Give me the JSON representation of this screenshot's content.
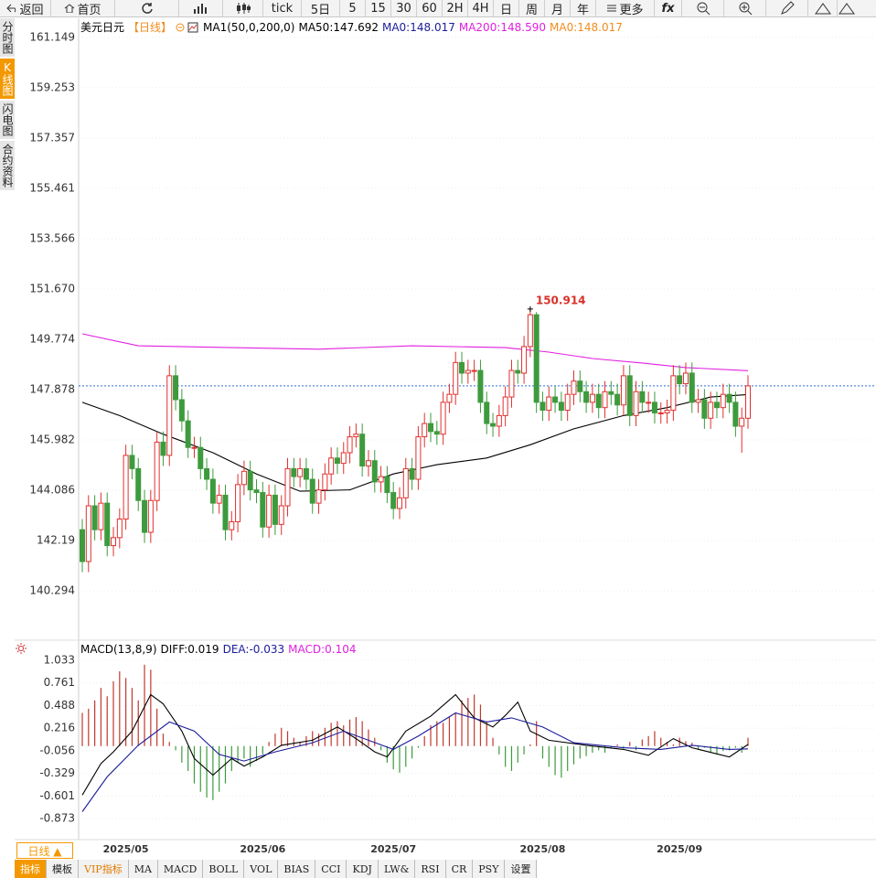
{
  "toolbar": [
    "返回",
    "首页",
    "tick",
    "5日",
    "5",
    "15",
    "30",
    "60",
    "2H",
    "4H",
    "日",
    "周",
    "月",
    "年",
    "更多",
    "fx"
  ],
  "side_tabs": [
    "分时图",
    "K线图",
    "闪电图",
    "合约资料"
  ],
  "period_button": "日线 ▲",
  "bottom_tabs": [
    "指标",
    "模板",
    "VIP指标",
    "MA",
    "MACD",
    "BOLL",
    "VOL",
    "BIAS",
    "CCI",
    "KDJ",
    "LW&",
    "RSI",
    "CR",
    "PSY",
    "设置"
  ],
  "chart_data": [
    {
      "type": "candlestick",
      "title": "美元日元",
      "period": "【日线】",
      "indicator": "MA1(50,0,200,0)",
      "legend": [
        {
          "label": "MA50:147.692",
          "color": "#000000"
        },
        {
          "label": "MA0:148.017",
          "color": "#1c1c9c"
        },
        {
          "label": "MA200:148.590",
          "color": "#e020e0"
        },
        {
          "label": "MA0:148.017",
          "color": "#f08c1e"
        }
      ],
      "categories": [
        null,
        null,
        null,
        null,
        null,
        null,
        null,
        "2025/05",
        null,
        null,
        null,
        null,
        null,
        null,
        null,
        null,
        null,
        null,
        null,
        null,
        null,
        null,
        null,
        null,
        null,
        null,
        null,
        null,
        null,
        "2025/06",
        null,
        null,
        null,
        null,
        null,
        null,
        null,
        null,
        null,
        null,
        null,
        null,
        null,
        null,
        null,
        null,
        null,
        null,
        null,
        null,
        "2025/07",
        null,
        null,
        null,
        null,
        null,
        null,
        null,
        null,
        null,
        null,
        null,
        null,
        null,
        null,
        null,
        null,
        null,
        null,
        null,
        null,
        null,
        null,
        null,
        "2025/08",
        null,
        null,
        null,
        null,
        null,
        null,
        null,
        null,
        null,
        null,
        null,
        null,
        null,
        null,
        null,
        null,
        null,
        null,
        null,
        null,
        null,
        "2025/09",
        null,
        null,
        null,
        null,
        null,
        null,
        null,
        null,
        null,
        null,
        null
      ],
      "candles": [
        [
          142.6,
          143.0,
          141.0,
          141.4
        ],
        [
          141.4,
          143.9,
          141.0,
          143.5
        ],
        [
          143.5,
          143.9,
          142.2,
          142.6
        ],
        [
          142.6,
          144.0,
          142.2,
          143.6
        ],
        [
          143.6,
          144.0,
          141.6,
          142.0
        ],
        [
          142.0,
          142.7,
          141.6,
          142.3
        ],
        [
          142.3,
          143.4,
          141.9,
          143.0
        ],
        [
          143.0,
          145.8,
          142.6,
          145.4
        ],
        [
          145.4,
          145.8,
          144.5,
          144.9
        ],
        [
          144.9,
          145.3,
          143.3,
          143.7
        ],
        [
          143.7,
          144.1,
          142.1,
          142.5
        ],
        [
          142.5,
          144.1,
          142.1,
          143.7
        ],
        [
          143.7,
          146.3,
          143.3,
          145.9
        ],
        [
          145.9,
          146.3,
          145.0,
          145.4
        ],
        [
          145.4,
          148.8,
          145.0,
          148.4
        ],
        [
          148.4,
          148.8,
          147.1,
          147.5
        ],
        [
          147.5,
          147.9,
          146.3,
          146.7
        ],
        [
          146.7,
          147.1,
          145.3,
          145.7
        ],
        [
          145.7,
          146.1,
          145.3,
          145.7
        ],
        [
          145.7,
          146.1,
          144.5,
          144.9
        ],
        [
          144.9,
          145.3,
          144.1,
          144.5
        ],
        [
          144.5,
          144.9,
          143.2,
          143.6
        ],
        [
          143.6,
          144.3,
          143.2,
          143.9
        ],
        [
          143.9,
          144.3,
          142.2,
          142.6
        ],
        [
          142.6,
          143.3,
          142.2,
          142.9
        ],
        [
          142.9,
          144.7,
          142.5,
          144.3
        ],
        [
          144.3,
          145.2,
          143.9,
          144.8
        ],
        [
          144.8,
          145.2,
          143.7,
          144.1
        ],
        [
          144.1,
          144.5,
          143.6,
          144.0
        ],
        [
          144.0,
          144.4,
          142.3,
          142.7
        ],
        [
          142.7,
          144.3,
          142.3,
          143.9
        ],
        [
          143.9,
          144.3,
          142.4,
          142.8
        ],
        [
          142.8,
          143.9,
          142.4,
          143.5
        ],
        [
          143.5,
          145.3,
          143.1,
          144.9
        ],
        [
          144.9,
          145.3,
          144.2,
          144.6
        ],
        [
          144.6,
          145.3,
          144.2,
          144.9
        ],
        [
          144.9,
          145.3,
          144.1,
          144.5
        ],
        [
          144.5,
          144.9,
          143.2,
          143.6
        ],
        [
          143.6,
          144.5,
          143.2,
          144.1
        ],
        [
          144.1,
          145.1,
          143.7,
          144.7
        ],
        [
          144.7,
          145.7,
          144.3,
          145.3
        ],
        [
          145.3,
          145.7,
          144.7,
          145.1
        ],
        [
          145.1,
          145.9,
          144.7,
          145.5
        ],
        [
          145.5,
          146.5,
          145.1,
          146.1
        ],
        [
          146.1,
          146.6,
          145.7,
          146.2
        ],
        [
          146.2,
          146.6,
          144.6,
          145.0
        ],
        [
          145.0,
          145.6,
          144.6,
          145.2
        ],
        [
          145.2,
          145.6,
          144.0,
          144.4
        ],
        [
          144.4,
          145.0,
          144.0,
          144.6
        ],
        [
          144.6,
          145.0,
          143.6,
          144.0
        ],
        [
          144.0,
          144.4,
          143.0,
          143.4
        ],
        [
          143.4,
          144.2,
          143.0,
          143.8
        ],
        [
          143.8,
          145.3,
          143.4,
          144.9
        ],
        [
          144.9,
          145.3,
          144.1,
          144.5
        ],
        [
          144.5,
          146.5,
          144.1,
          146.1
        ],
        [
          146.1,
          147.0,
          145.7,
          146.6
        ],
        [
          146.6,
          147.0,
          145.9,
          146.3
        ],
        [
          146.3,
          146.7,
          145.8,
          146.2
        ],
        [
          146.2,
          147.8,
          145.8,
          147.4
        ],
        [
          147.4,
          148.1,
          147.0,
          147.7
        ],
        [
          147.7,
          149.3,
          147.3,
          148.9
        ],
        [
          148.9,
          149.3,
          148.1,
          148.5
        ],
        [
          148.5,
          149.0,
          148.1,
          148.6
        ],
        [
          148.6,
          149.0,
          148.2,
          148.6
        ],
        [
          148.6,
          149.0,
          147.0,
          147.4
        ],
        [
          147.4,
          147.8,
          146.2,
          146.6
        ],
        [
          146.6,
          147.0,
          146.1,
          146.5
        ],
        [
          146.5,
          147.3,
          146.1,
          146.9
        ],
        [
          146.9,
          148.0,
          146.5,
          147.6
        ],
        [
          147.6,
          149.0,
          147.2,
          148.6
        ],
        [
          148.6,
          149.0,
          148.1,
          148.5
        ],
        [
          148.5,
          149.9,
          148.1,
          149.5
        ],
        [
          149.5,
          150.914,
          149.1,
          150.7
        ],
        [
          150.7,
          150.8,
          147.0,
          147.4
        ],
        [
          147.4,
          147.8,
          146.7,
          147.1
        ],
        [
          147.1,
          148.0,
          146.7,
          147.6
        ],
        [
          147.6,
          148.0,
          147.0,
          147.4
        ],
        [
          147.4,
          147.8,
          146.7,
          147.1
        ],
        [
          147.1,
          148.1,
          146.7,
          147.7
        ],
        [
          147.7,
          148.6,
          147.3,
          148.2
        ],
        [
          148.2,
          148.6,
          147.4,
          147.8
        ],
        [
          147.8,
          148.2,
          147.0,
          147.4
        ],
        [
          147.4,
          148.1,
          147.0,
          147.7
        ],
        [
          147.7,
          148.1,
          146.8,
          147.2
        ],
        [
          147.2,
          148.2,
          146.8,
          147.8
        ],
        [
          147.8,
          148.2,
          147.3,
          147.7
        ],
        [
          147.7,
          148.1,
          146.9,
          147.3
        ],
        [
          147.3,
          148.8,
          146.9,
          148.4
        ],
        [
          148.4,
          148.8,
          146.5,
          146.9
        ],
        [
          146.9,
          148.2,
          146.5,
          147.8
        ],
        [
          147.8,
          148.2,
          147.0,
          147.4
        ],
        [
          147.4,
          147.8,
          147.0,
          147.4
        ],
        [
          147.4,
          147.8,
          146.6,
          147.0
        ],
        [
          147.0,
          147.4,
          146.6,
          147.0
        ],
        [
          147.0,
          147.5,
          146.6,
          147.1
        ],
        [
          147.1,
          148.8,
          146.7,
          148.4
        ],
        [
          148.4,
          148.8,
          147.7,
          148.1
        ],
        [
          148.1,
          148.9,
          147.7,
          148.5
        ],
        [
          148.5,
          148.9,
          147.0,
          147.4
        ],
        [
          147.4,
          147.9,
          147.0,
          147.5
        ],
        [
          147.5,
          147.9,
          146.4,
          146.8
        ],
        [
          146.8,
          147.8,
          146.4,
          147.4
        ],
        [
          147.4,
          147.8,
          146.8,
          147.2
        ],
        [
          147.2,
          148.1,
          146.8,
          147.7
        ],
        [
          147.7,
          148.1,
          147.0,
          147.4
        ],
        [
          147.4,
          147.8,
          146.1,
          146.5
        ],
        [
          146.5,
          147.2,
          145.5,
          146.8
        ],
        [
          146.8,
          148.42,
          146.4,
          148.02
        ]
      ],
      "up_color": "#e0302f",
      "down_color": "#3d9b3d",
      "series": [
        {
          "color": "#000000",
          "x": [
            0,
            6,
            13,
            21,
            28,
            35,
            43,
            50,
            57,
            65,
            72,
            79,
            87,
            94,
            101,
            107
          ],
          "values": [
            147.4,
            146.9,
            146.2,
            145.5,
            144.7,
            144.05,
            144.1,
            144.7,
            145.05,
            145.3,
            145.8,
            146.4,
            146.9,
            147.2,
            147.6,
            147.692
          ]
        },
        {
          "color": "#e020e0",
          "x": [
            0,
            9,
            24,
            38,
            53,
            68,
            75,
            82,
            90,
            97,
            107
          ],
          "values": [
            149.98,
            149.53,
            149.46,
            149.4,
            149.53,
            149.46,
            149.29,
            149.05,
            148.88,
            148.71,
            148.59
          ]
        }
      ],
      "max_label": 150.914,
      "max_label_color": "#d9302a",
      "last_price_color": "#2f6fd6",
      "ylim": [
        138.78,
        161.87
      ],
      "yticks": [
        161.149,
        159.253,
        157.357,
        155.461,
        153.566,
        {
          "value": 151.67,
          "label": "151.670"
        },
        149.774,
        147.878,
        145.982,
        144.086,
        142.19,
        140.294
      ],
      "grid": true
    },
    {
      "type": "macd",
      "title": "MACD(13,8,9)",
      "legend": [
        {
          "label": "DIFF:0.019",
          "color": "#000000"
        },
        {
          "label": "DEA:-0.033",
          "color": "#1c1c9c"
        },
        {
          "label": "MACD:0.104",
          "color": "#e020e0"
        }
      ],
      "histogram": [
        0.4,
        0.45,
        0.55,
        0.7,
        0.6,
        0.78,
        0.9,
        0.82,
        0.7,
        0.55,
        0.98,
        0.92,
        0.45,
        0.15,
        0.05,
        -0.05,
        -0.2,
        -0.3,
        -0.45,
        -0.55,
        -0.62,
        -0.65,
        -0.55,
        -0.45,
        -0.3,
        -0.2,
        -0.15,
        -0.25,
        -0.18,
        -0.1,
        0.05,
        0.15,
        0.22,
        0.18,
        0.1,
        0.05,
        0.12,
        0.18,
        0.15,
        0.22,
        0.28,
        0.3,
        0.25,
        0.32,
        0.35,
        0.3,
        0.2,
        0.1,
        -0.05,
        -0.2,
        -0.28,
        -0.32,
        -0.25,
        -0.15,
        -0.02,
        0.12,
        0.25,
        0.3,
        0.28,
        0.35,
        0.4,
        0.55,
        0.58,
        0.62,
        0.5,
        0.3,
        0.1,
        -0.1,
        -0.25,
        -0.3,
        -0.2,
        -0.1,
        0.02,
        0.3,
        -0.15,
        -0.25,
        -0.35,
        -0.38,
        -0.3,
        -0.22,
        -0.15,
        -0.12,
        -0.08,
        -0.05,
        -0.08,
        -0.02,
        0.02,
        -0.03,
        0.05,
        -0.05,
        0.08,
        0.12,
        0.18,
        0.1,
        0.05,
        0.02,
        0.1,
        0.06,
        0.04,
        -0.04,
        -0.02,
        -0.08,
        -0.1,
        -0.06,
        -0.05,
        -0.02,
        -0.08,
        0.1
      ],
      "up_color": "#c0392b",
      "down_color": "#3d9b3d",
      "series": [
        {
          "color": "#000000",
          "x": [
            0,
            3,
            5,
            8,
            11,
            13,
            16,
            18,
            21,
            24,
            26,
            29,
            32,
            37,
            41,
            44,
            47,
            49,
            52,
            56,
            60,
            63,
            66,
            68,
            70,
            72,
            75,
            81,
            87,
            91,
            95,
            98,
            104,
            107
          ],
          "values": [
            -0.59,
            -0.21,
            -0.07,
            0.18,
            0.62,
            0.51,
            0.18,
            -0.15,
            -0.35,
            -0.15,
            -0.24,
            -0.13,
            0.01,
            0.07,
            0.23,
            0.09,
            -0.07,
            -0.13,
            0.18,
            0.36,
            0.62,
            0.34,
            0.23,
            0.37,
            0.53,
            0.18,
            0.07,
            0.01,
            -0.04,
            -0.11,
            0.09,
            -0.02,
            -0.13,
            0.019
          ]
        },
        {
          "color": "#1c1c9c",
          "x": [
            0,
            4,
            9,
            14,
            18,
            22,
            26,
            31,
            37,
            42,
            46,
            50,
            54,
            60,
            65,
            69,
            74,
            79,
            87,
            93,
            98,
            104,
            107
          ],
          "values": [
            -0.79,
            -0.37,
            0.01,
            0.29,
            0.18,
            -0.1,
            -0.18,
            -0.07,
            0.04,
            0.18,
            0.07,
            -0.04,
            0.12,
            0.4,
            0.29,
            0.34,
            0.23,
            0.04,
            -0.02,
            -0.04,
            0.01,
            -0.04,
            -0.033
          ]
        }
      ],
      "ylim": [
        -1.126,
        1.143
      ],
      "yticks": [
        1.033,
        0.761,
        0.488,
        0.216,
        -0.056,
        -0.329,
        -0.601,
        -0.873
      ],
      "grid": true
    }
  ]
}
